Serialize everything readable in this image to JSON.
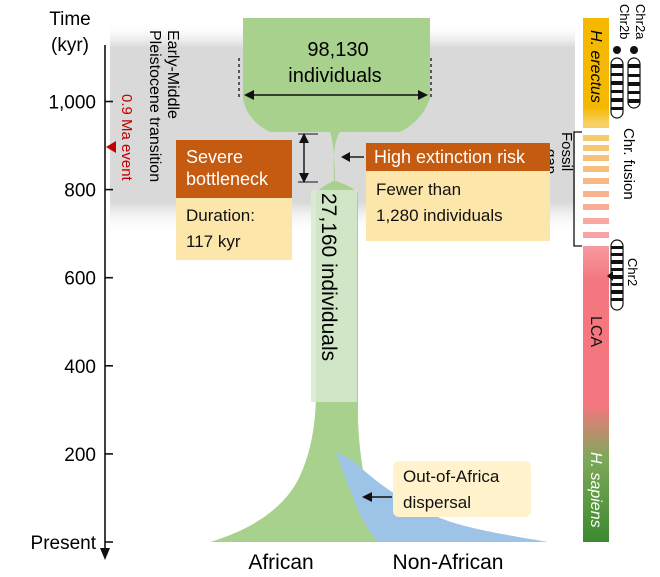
{
  "axis": {
    "title_line1": "Time",
    "title_line2": "(kyr)",
    "ticks": [
      {
        "value": 1000,
        "label": "1,000"
      },
      {
        "value": 800,
        "label": "800"
      },
      {
        "value": 600,
        "label": "600"
      },
      {
        "value": 400,
        "label": "400"
      },
      {
        "value": 200,
        "label": "200"
      },
      {
        "value": 0,
        "label": "Present"
      }
    ]
  },
  "transition": {
    "line1": "Early-Middle",
    "line2": "Pleistocene transition"
  },
  "event": {
    "line1": "0.9 Ma event",
    "time_kyr": 900
  },
  "ancestral": {
    "line1": "98,130",
    "line2": "individuals"
  },
  "bottleneck": {
    "title_line1": "Severe",
    "title_line2": "bottleneck",
    "duration_line1": "Duration:",
    "duration_line2": "117 kyr",
    "size_label": "27,160 individuals"
  },
  "risk": {
    "title": "High extinction risk",
    "line1": "Fewer than",
    "line2": "1,280 individuals"
  },
  "dispersal": {
    "line1": "Out-of-Africa",
    "line2": "dispersal"
  },
  "populations": {
    "african": "African",
    "non_african": "Non-African"
  },
  "fossil_gap": {
    "line1": "Fossil",
    "line2": "gap"
  },
  "chromosomes": {
    "chr2a": "Chr2a",
    "chr2b": "Chr2b",
    "fusion": "Chr. fusion",
    "chr2": "Chr2"
  },
  "side_bar": {
    "erectus": "H. erectus",
    "lca": "LCA",
    "sapiens": "H. sapiens"
  },
  "colors": {
    "african_green": "#a9d18e",
    "non_african_blue": "#9dc3e6",
    "bottleneck_orange": "#c55a11",
    "cream": "#fde6a9",
    "event_red": "#c00000",
    "erectus_yellow": "#f5b800",
    "lca_pink": "#f4777f",
    "sapiens_green": "#3b8a2f",
    "band_gray": "#d9d9d9"
  }
}
